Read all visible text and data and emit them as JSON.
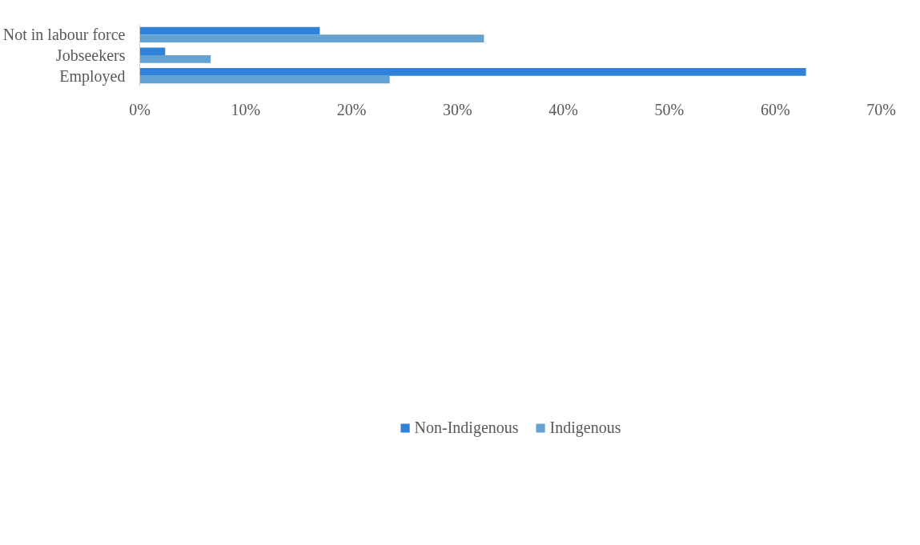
{
  "chart_data": {
    "type": "bar",
    "orientation": "horizontal",
    "categories": [
      "Not in labour force",
      "Jobseekers",
      "Employed"
    ],
    "series": [
      {
        "name": "Non-Indigenous",
        "color": "#2e82d8",
        "values": [
          17.0,
          2.4,
          62.9
        ]
      },
      {
        "name": "Indigenous",
        "color": "#64a2d4",
        "values": [
          32.5,
          6.7,
          23.6
        ]
      }
    ],
    "xlim": [
      0,
      70
    ],
    "xticks": [
      {
        "value": 0,
        "label": "0%"
      },
      {
        "value": 10,
        "label": "10%"
      },
      {
        "value": 20,
        "label": "20%"
      },
      {
        "value": 30,
        "label": "30%"
      },
      {
        "value": 40,
        "label": "40%"
      },
      {
        "value": 50,
        "label": "50%"
      },
      {
        "value": 60,
        "label": "60%"
      },
      {
        "value": 70,
        "label": "70%"
      }
    ],
    "grid": false,
    "legend": "bottom"
  }
}
